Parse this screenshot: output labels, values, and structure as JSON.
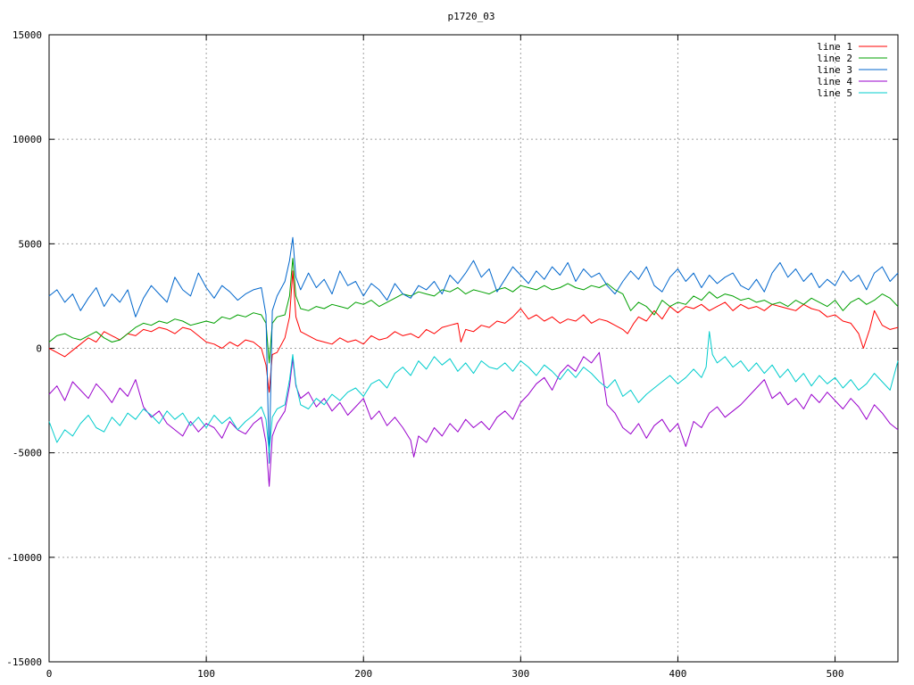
{
  "chart_data": {
    "type": "line",
    "title": "p1720_03",
    "xlabel": "",
    "ylabel": "",
    "xlim": [
      0,
      540
    ],
    "ylim": [
      -15000,
      15000
    ],
    "x_ticks": [
      0,
      100,
      200,
      300,
      400,
      500
    ],
    "y_ticks": [
      -15000,
      -10000,
      -5000,
      0,
      5000,
      10000,
      15000
    ],
    "grid": true,
    "legend_position": "top-right",
    "series": [
      {
        "name": "line 1",
        "color": "#ff0000",
        "x": [
          0,
          5,
          10,
          15,
          20,
          25,
          30,
          35,
          40,
          45,
          50,
          55,
          60,
          65,
          70,
          75,
          80,
          85,
          90,
          95,
          100,
          105,
          110,
          115,
          120,
          125,
          130,
          135,
          138,
          140,
          142,
          145,
          150,
          153,
          155,
          157,
          160,
          165,
          170,
          175,
          180,
          185,
          190,
          195,
          200,
          205,
          210,
          215,
          220,
          225,
          230,
          235,
          240,
          245,
          250,
          255,
          260,
          262,
          265,
          270,
          275,
          280,
          285,
          290,
          295,
          300,
          305,
          310,
          315,
          320,
          325,
          330,
          335,
          340,
          345,
          350,
          355,
          360,
          365,
          368,
          372,
          375,
          380,
          385,
          390,
          395,
          400,
          405,
          410,
          415,
          420,
          425,
          430,
          435,
          440,
          445,
          450,
          455,
          460,
          465,
          470,
          475,
          480,
          485,
          490,
          495,
          500,
          505,
          510,
          515,
          518,
          522,
          525,
          530,
          535,
          540
        ],
        "y": [
          0,
          -200,
          -400,
          -100,
          200,
          500,
          300,
          800,
          600,
          400,
          700,
          600,
          900,
          800,
          1000,
          900,
          700,
          1000,
          900,
          600,
          300,
          200,
          0,
          300,
          100,
          400,
          300,
          0,
          -800,
          -2100,
          -300,
          -200,
          500,
          1500,
          3700,
          1500,
          800,
          600,
          400,
          300,
          200,
          500,
          300,
          400,
          200,
          600,
          400,
          500,
          800,
          600,
          700,
          500,
          900,
          700,
          1000,
          1100,
          1200,
          300,
          900,
          800,
          1100,
          1000,
          1300,
          1200,
          1500,
          1900,
          1400,
          1600,
          1300,
          1500,
          1200,
          1400,
          1300,
          1600,
          1200,
          1400,
          1300,
          1100,
          900,
          700,
          1200,
          1500,
          1300,
          1800,
          1400,
          2000,
          1700,
          2000,
          1900,
          2100,
          1800,
          2000,
          2200,
          1800,
          2100,
          1900,
          2000,
          1800,
          2100,
          2000,
          1900,
          1800,
          2100,
          1900,
          1800,
          1500,
          1600,
          1300,
          1200,
          700,
          0,
          900,
          1800,
          1100,
          900,
          1000
        ]
      },
      {
        "name": "line 2",
        "color": "#00a000",
        "x": [
          0,
          5,
          10,
          15,
          20,
          25,
          30,
          35,
          40,
          45,
          50,
          55,
          60,
          65,
          70,
          75,
          80,
          85,
          90,
          95,
          100,
          105,
          110,
          115,
          120,
          125,
          130,
          135,
          138,
          140,
          142,
          145,
          150,
          153,
          155,
          157,
          160,
          165,
          170,
          175,
          180,
          185,
          190,
          195,
          200,
          205,
          210,
          215,
          220,
          225,
          230,
          235,
          240,
          245,
          250,
          255,
          260,
          265,
          270,
          275,
          280,
          285,
          290,
          295,
          300,
          305,
          310,
          315,
          320,
          325,
          330,
          335,
          340,
          345,
          350,
          355,
          360,
          365,
          370,
          375,
          380,
          385,
          390,
          395,
          400,
          405,
          410,
          415,
          420,
          425,
          430,
          435,
          440,
          445,
          450,
          455,
          460,
          465,
          470,
          475,
          480,
          485,
          490,
          495,
          500,
          505,
          510,
          515,
          520,
          525,
          530,
          535,
          540
        ],
        "y": [
          300,
          600,
          700,
          500,
          400,
          600,
          800,
          500,
          300,
          400,
          700,
          1000,
          1200,
          1100,
          1300,
          1200,
          1400,
          1300,
          1100,
          1200,
          1300,
          1200,
          1500,
          1400,
          1600,
          1500,
          1700,
          1600,
          1200,
          -700,
          1200,
          1500,
          1600,
          2500,
          4300,
          2500,
          1900,
          1800,
          2000,
          1900,
          2100,
          2000,
          1900,
          2200,
          2100,
          2300,
          2000,
          2200,
          2400,
          2600,
          2500,
          2700,
          2600,
          2500,
          2800,
          2700,
          2900,
          2600,
          2800,
          2700,
          2600,
          2800,
          2900,
          2700,
          3000,
          2900,
          2800,
          3000,
          2800,
          2900,
          3100,
          2900,
          2800,
          3000,
          2900,
          3100,
          2800,
          2600,
          1800,
          2200,
          2000,
          1600,
          2300,
          2000,
          2200,
          2100,
          2500,
          2300,
          2700,
          2400,
          2600,
          2500,
          2300,
          2400,
          2200,
          2300,
          2100,
          2200,
          2000,
          2300,
          2100,
          2400,
          2200,
          2000,
          2300,
          1800,
          2200,
          2400,
          2100,
          2300,
          2600,
          2400,
          2000
        ]
      },
      {
        "name": "line 3",
        "color": "#0066cc",
        "x": [
          0,
          5,
          10,
          15,
          20,
          25,
          30,
          35,
          40,
          45,
          50,
          55,
          60,
          65,
          70,
          75,
          80,
          85,
          90,
          95,
          100,
          105,
          110,
          115,
          120,
          125,
          130,
          135,
          138,
          140,
          142,
          145,
          150,
          153,
          155,
          157,
          160,
          165,
          170,
          175,
          180,
          185,
          190,
          195,
          200,
          205,
          210,
          215,
          220,
          225,
          230,
          235,
          240,
          245,
          250,
          255,
          260,
          265,
          270,
          275,
          280,
          285,
          290,
          295,
          300,
          305,
          310,
          315,
          320,
          325,
          330,
          335,
          340,
          345,
          350,
          355,
          360,
          365,
          370,
          375,
          380,
          385,
          390,
          395,
          400,
          405,
          410,
          415,
          420,
          425,
          430,
          435,
          440,
          445,
          450,
          455,
          460,
          465,
          470,
          475,
          480,
          485,
          490,
          495,
          500,
          505,
          510,
          515,
          520,
          525,
          530,
          535,
          540
        ],
        "y": [
          2500,
          2800,
          2200,
          2600,
          1800,
          2400,
          2900,
          2000,
          2600,
          2200,
          2800,
          1500,
          2400,
          3000,
          2600,
          2200,
          3400,
          2800,
          2500,
          3600,
          2900,
          2400,
          3000,
          2700,
          2300,
          2600,
          2800,
          2900,
          1600,
          -5500,
          1800,
          2500,
          3200,
          4200,
          5300,
          3400,
          2800,
          3600,
          2900,
          3300,
          2600,
          3700,
          3000,
          3200,
          2500,
          3100,
          2800,
          2300,
          3100,
          2600,
          2400,
          3000,
          2800,
          3200,
          2600,
          3500,
          3100,
          3600,
          4200,
          3400,
          3800,
          2700,
          3300,
          3900,
          3500,
          3100,
          3700,
          3300,
          3900,
          3500,
          4100,
          3200,
          3800,
          3400,
          3600,
          3000,
          2600,
          3200,
          3700,
          3300,
          3900,
          3000,
          2700,
          3400,
          3800,
          3200,
          3600,
          2900,
          3500,
          3100,
          3400,
          3600,
          3000,
          2800,
          3300,
          2700,
          3600,
          4100,
          3400,
          3800,
          3200,
          3600,
          2900,
          3300,
          3000,
          3700,
          3200,
          3500,
          2800,
          3600,
          3900,
          3200,
          3600
        ]
      },
      {
        "name": "line 4",
        "color": "#9900cc",
        "x": [
          0,
          5,
          10,
          15,
          20,
          25,
          30,
          35,
          40,
          45,
          50,
          55,
          60,
          65,
          70,
          75,
          80,
          85,
          90,
          95,
          100,
          105,
          110,
          115,
          120,
          125,
          130,
          135,
          138,
          140,
          142,
          145,
          150,
          153,
          155,
          157,
          160,
          165,
          170,
          175,
          180,
          185,
          190,
          195,
          200,
          205,
          210,
          215,
          220,
          225,
          230,
          232,
          235,
          240,
          245,
          250,
          255,
          260,
          265,
          270,
          275,
          280,
          285,
          290,
          295,
          300,
          305,
          310,
          315,
          320,
          325,
          330,
          335,
          340,
          345,
          350,
          355,
          360,
          365,
          370,
          375,
          380,
          385,
          390,
          395,
          400,
          405,
          410,
          415,
          420,
          425,
          430,
          435,
          440,
          445,
          450,
          455,
          460,
          465,
          470,
          475,
          480,
          485,
          490,
          495,
          500,
          505,
          510,
          515,
          520,
          525,
          530,
          535,
          540
        ],
        "y": [
          -2200,
          -1800,
          -2500,
          -1600,
          -2000,
          -2400,
          -1700,
          -2100,
          -2600,
          -1900,
          -2300,
          -1500,
          -2800,
          -3300,
          -3000,
          -3600,
          -3900,
          -4200,
          -3500,
          -4000,
          -3600,
          -3800,
          -4300,
          -3500,
          -3900,
          -4100,
          -3600,
          -3300,
          -4500,
          -6600,
          -4200,
          -3600,
          -3000,
          -1800,
          -500,
          -1800,
          -2400,
          -2100,
          -2800,
          -2400,
          -3000,
          -2600,
          -3200,
          -2800,
          -2400,
          -3400,
          -3000,
          -3700,
          -3300,
          -3800,
          -4400,
          -5200,
          -4200,
          -4500,
          -3800,
          -4200,
          -3600,
          -4000,
          -3400,
          -3800,
          -3500,
          -3900,
          -3300,
          -3000,
          -3400,
          -2600,
          -2200,
          -1700,
          -1400,
          -2000,
          -1200,
          -800,
          -1100,
          -400,
          -700,
          -200,
          -2700,
          -3100,
          -3800,
          -4100,
          -3600,
          -4300,
          -3700,
          -3400,
          -4000,
          -3600,
          -4700,
          -3500,
          -3800,
          -3100,
          -2800,
          -3300,
          -3000,
          -2700,
          -2300,
          -1900,
          -1500,
          -2400,
          -2100,
          -2700,
          -2400,
          -2900,
          -2200,
          -2600,
          -2100,
          -2500,
          -2900,
          -2400,
          -2800,
          -3400,
          -2700,
          -3100,
          -3600,
          -3900
        ]
      },
      {
        "name": "line 5",
        "color": "#00cccc",
        "x": [
          0,
          5,
          10,
          15,
          20,
          25,
          30,
          35,
          40,
          45,
          50,
          55,
          60,
          65,
          70,
          75,
          80,
          85,
          90,
          95,
          100,
          105,
          110,
          115,
          120,
          125,
          130,
          135,
          138,
          140,
          142,
          145,
          150,
          153,
          155,
          157,
          160,
          165,
          170,
          175,
          180,
          185,
          190,
          195,
          200,
          205,
          210,
          215,
          220,
          225,
          230,
          235,
          240,
          245,
          250,
          255,
          260,
          265,
          270,
          275,
          280,
          285,
          290,
          295,
          300,
          305,
          310,
          315,
          320,
          325,
          330,
          335,
          340,
          345,
          350,
          355,
          360,
          365,
          370,
          375,
          380,
          385,
          390,
          395,
          400,
          405,
          410,
          415,
          418,
          420,
          422,
          425,
          430,
          435,
          440,
          445,
          450,
          455,
          460,
          465,
          470,
          475,
          480,
          485,
          490,
          495,
          500,
          505,
          510,
          515,
          520,
          525,
          530,
          535,
          540
        ],
        "y": [
          -3500,
          -4500,
          -3900,
          -4200,
          -3600,
          -3200,
          -3800,
          -4000,
          -3300,
          -3700,
          -3100,
          -3400,
          -2900,
          -3200,
          -3600,
          -3000,
          -3400,
          -3100,
          -3700,
          -3300,
          -3800,
          -3200,
          -3600,
          -3300,
          -3900,
          -3500,
          -3200,
          -2800,
          -3400,
          -5000,
          -3300,
          -2900,
          -2700,
          -1500,
          -300,
          -1700,
          -2700,
          -2900,
          -2400,
          -2700,
          -2200,
          -2500,
          -2100,
          -1900,
          -2300,
          -1700,
          -1500,
          -1900,
          -1200,
          -900,
          -1300,
          -600,
          -1000,
          -400,
          -800,
          -500,
          -1100,
          -700,
          -1200,
          -600,
          -900,
          -1000,
          -700,
          -1100,
          -600,
          -900,
          -1300,
          -800,
          -1100,
          -1500,
          -1000,
          -1400,
          -900,
          -1200,
          -1600,
          -1900,
          -1500,
          -2300,
          -2000,
          -2600,
          -2200,
          -1900,
          -1600,
          -1300,
          -1700,
          -1400,
          -1000,
          -1400,
          -900,
          800,
          -300,
          -700,
          -400,
          -900,
          -600,
          -1100,
          -700,
          -1200,
          -800,
          -1400,
          -1000,
          -1600,
          -1200,
          -1800,
          -1300,
          -1700,
          -1400,
          -1900,
          -1500,
          -2000,
          -1700,
          -1200,
          -1600,
          -2000,
          -600
        ]
      }
    ]
  }
}
